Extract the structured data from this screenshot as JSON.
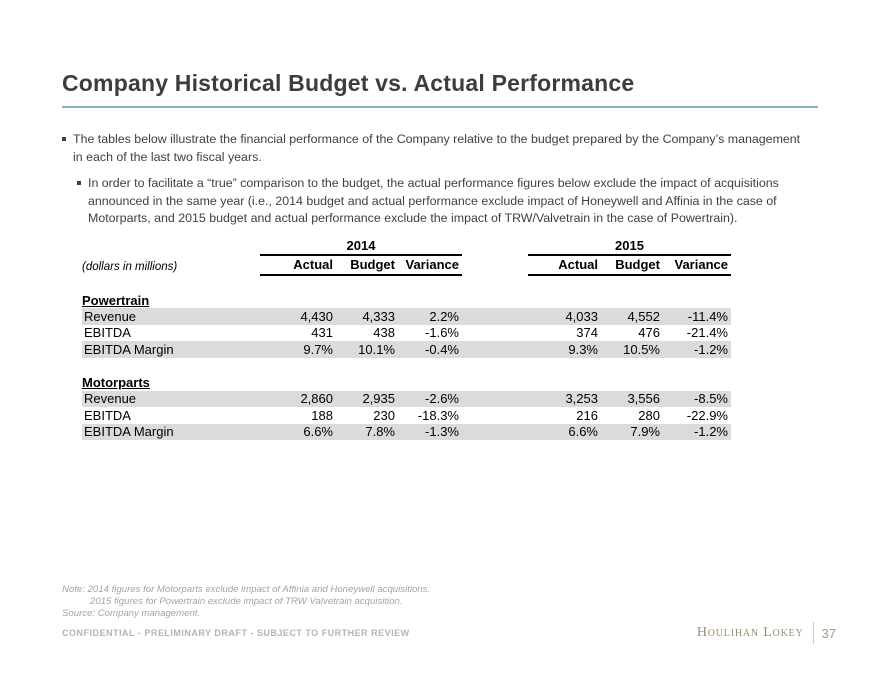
{
  "slide": {
    "title": "Company Historical Budget vs. Actual Performance"
  },
  "bullets": {
    "level1": "The tables below illustrate the financial performance of the Company relative to the budget prepared by the Company’s management in each of the last two fiscal years.",
    "level2": "In order to facilitate a “true” comparison to the budget, the actual performance figures below exclude the impact of acquisitions announced in the same year (i.e., 2014 budget and actual performance exclude impact of Honeywell and Affinia in the case of Motorparts, and 2015 budget and actual performance exclude the impact of TRW/Valvetrain in the case of Powertrain)."
  },
  "table": {
    "units_label": "(dollars in millions)",
    "groups": [
      {
        "year": "2014",
        "cols": [
          "Actual",
          "Budget",
          "Variance"
        ]
      },
      {
        "year": "2015",
        "cols": [
          "Actual",
          "Budget",
          "Variance"
        ]
      }
    ],
    "sections": [
      {
        "name": "Powertrain",
        "rows": [
          {
            "label": "Revenue",
            "g1": [
              "4,430",
              "4,333",
              "2.2%"
            ],
            "g2": [
              "4,033",
              "4,552",
              "-11.4%"
            ]
          },
          {
            "label": "EBITDA",
            "g1": [
              "431",
              "438",
              "-1.6%"
            ],
            "g2": [
              "374",
              "476",
              "-21.4%"
            ]
          },
          {
            "label": "EBITDA Margin",
            "g1": [
              "9.7%",
              "10.1%",
              "-0.4%"
            ],
            "g2": [
              "9.3%",
              "10.5%",
              "-1.2%"
            ]
          }
        ]
      },
      {
        "name": "Motorparts",
        "rows": [
          {
            "label": "Revenue",
            "g1": [
              "2,860",
              "2,935",
              "-2.6%"
            ],
            "g2": [
              "3,253",
              "3,556",
              "-8.5%"
            ]
          },
          {
            "label": "EBITDA",
            "g1": [
              "188",
              "230",
              "-18.3%"
            ],
            "g2": [
              "216",
              "280",
              "-22.9%"
            ]
          },
          {
            "label": "EBITDA Margin",
            "g1": [
              "6.6%",
              "7.8%",
              "-1.3%"
            ],
            "g2": [
              "6.6%",
              "7.9%",
              "-1.2%"
            ]
          }
        ]
      }
    ]
  },
  "notes": {
    "line1": "Note:  2014 figures for Motorparts exclude impact of Affinia and Honeywell acquisitions.",
    "line2": "2015 figures for Powertrain exclude impact of TRW Valvetrain acquisition.",
    "source": "Source: Company management."
  },
  "footer": {
    "confidential": "CONFIDENTIAL - PRELIMINARY DRAFT - SUBJECT TO FURTHER REVIEW",
    "brand": "Houlihan Lokey",
    "page_number": "37"
  },
  "colors": {
    "title_underline": "#8AAFC7",
    "row_shade": "#DBDBDB",
    "brand_tan": "#9A8C72"
  }
}
